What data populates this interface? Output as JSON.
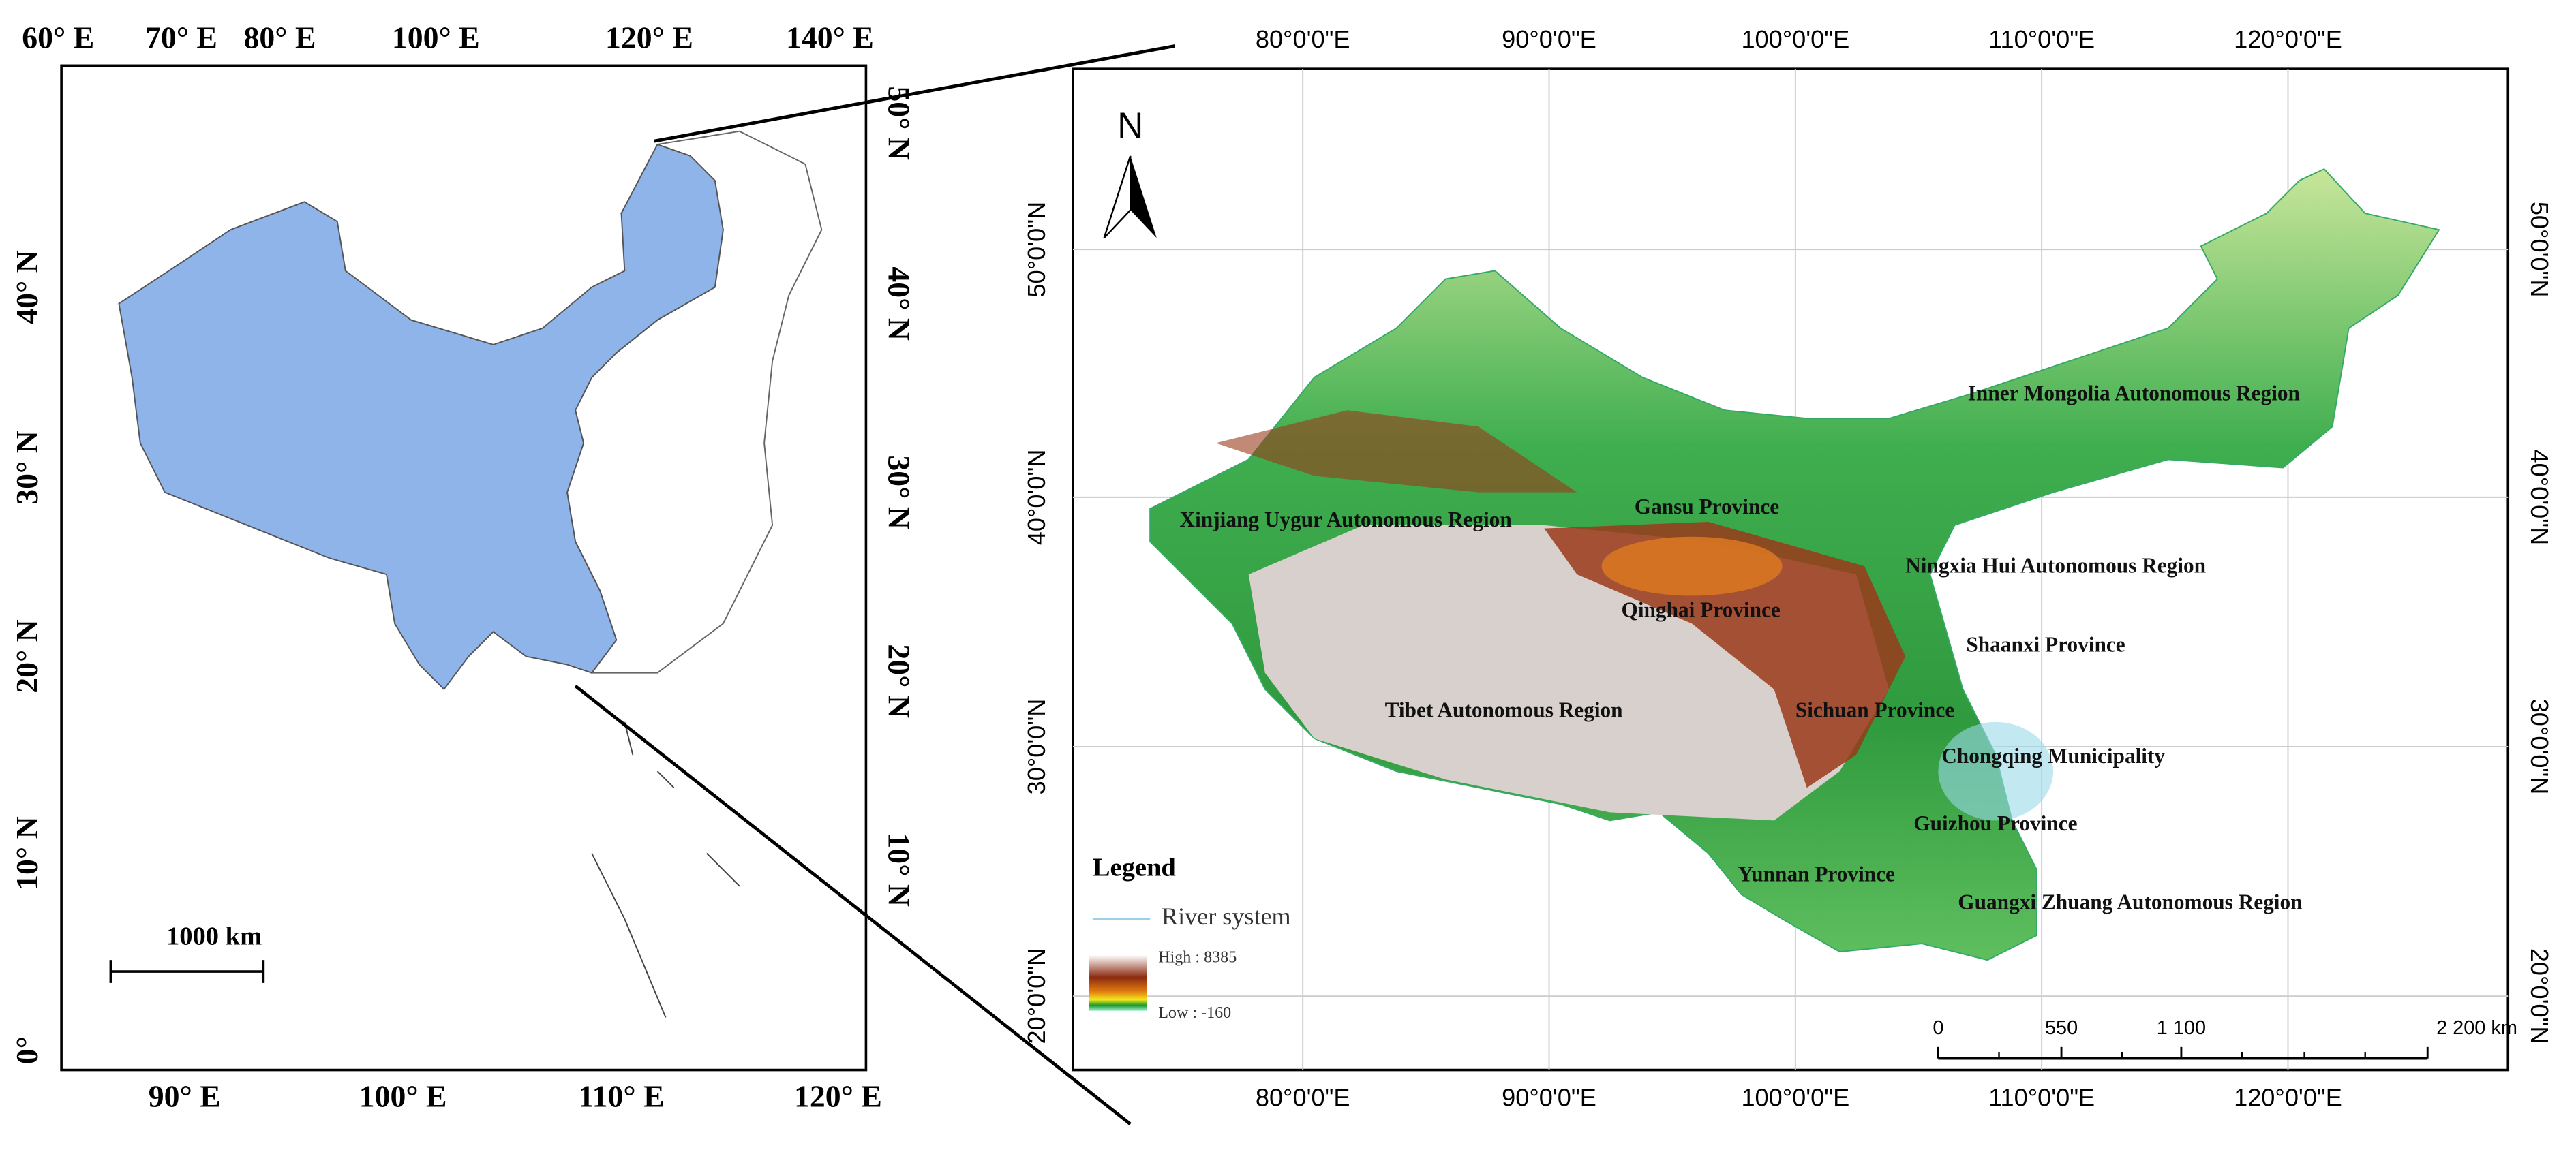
{
  "left_map": {
    "top_labels": [
      "60° E",
      "70° E",
      "80° E",
      "100° E",
      "120° E",
      "140° E"
    ],
    "bottom_labels": [
      "90° E",
      "100° E",
      "110° E",
      "120° E"
    ],
    "left_labels": [
      "40° N",
      "30° N",
      "20° N",
      "10° N",
      "0°"
    ],
    "right_labels": [
      "50° N",
      "40° N",
      "30° N",
      "20° N",
      "10° N"
    ],
    "scale_label": "1000 km"
  },
  "right_map": {
    "top_labels": [
      "80°0'0\"E",
      "90°0'0\"E",
      "100°0'0\"E",
      "110°0'0\"E",
      "120°0'0\"E"
    ],
    "bottom_labels": [
      "80°0'0\"E",
      "90°0'0\"E",
      "100°0'0\"E",
      "110°0'0\"E",
      "120°0'0\"E"
    ],
    "left_labels": [
      "50°0'0\"N",
      "40°0'0\"N",
      "30°0'0\"N",
      "20°0'0\"N"
    ],
    "right_labels": [
      "50°0'0\"N",
      "40°0'0\"N",
      "30°0'0\"N",
      "20°0'0\"N"
    ],
    "north": "N",
    "regions": [
      "Inner Mongolia Autonomous Region",
      "Gansu Province",
      "Xinjiang Uygur Autonomous Region",
      "Ningxia Hui Autonomous Region",
      "Qinghai Province",
      "Shaanxi Province",
      "Sichuan Province",
      "Tibet Autonomous Region",
      "Chongqing Municipality",
      "Guizhou Province",
      "Yunnan Province",
      "Guangxi Zhuang Autonomous Region"
    ],
    "legend": {
      "title": "Legend",
      "river": "River system",
      "high": "High : 8385",
      "low": "Low : -160"
    },
    "scale_labels": [
      "0",
      "550",
      "1 100",
      "2 200 km"
    ]
  }
}
